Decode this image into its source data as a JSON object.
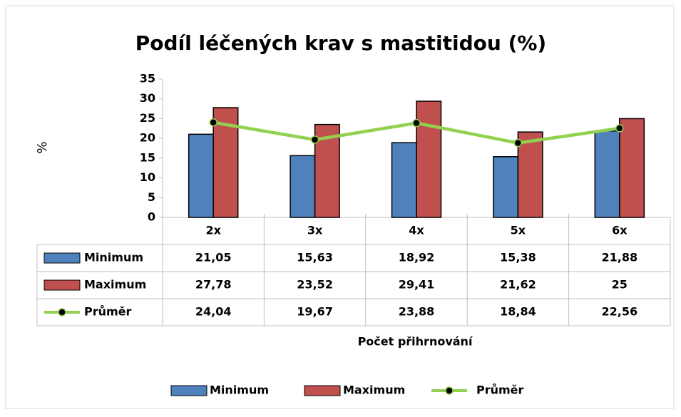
{
  "chart_data": {
    "type": "bar",
    "title": "Podíl léčených krav s mastitidou (%)",
    "y_label": "%",
    "x_label": "Počet přihrnování",
    "categories": [
      "2x",
      "3x",
      "4x",
      "5x",
      "6x"
    ],
    "series": [
      {
        "name": "Minimum",
        "type": "bar",
        "color": "#4f81bd",
        "values": [
          21.05,
          15.63,
          18.92,
          15.38,
          21.88
        ],
        "value_labels": [
          "21,05",
          "15,63",
          "18,92",
          "15,38",
          "21,88"
        ]
      },
      {
        "name": "Maximum",
        "type": "bar",
        "color": "#c0504d",
        "values": [
          27.78,
          23.52,
          29.41,
          21.62,
          25
        ],
        "value_labels": [
          "27,78",
          "23,52",
          "29,41",
          "21,62",
          "25"
        ]
      },
      {
        "name": "Průměr",
        "type": "line",
        "color": "#92d050",
        "marker_color": "#000000",
        "values": [
          24.04,
          19.67,
          23.88,
          18.84,
          22.56
        ],
        "value_labels": [
          "24,04",
          "19,67",
          "23,88",
          "18,84",
          "22,56"
        ]
      }
    ],
    "ylim": [
      0,
      35
    ],
    "yticks": [
      0,
      5,
      10,
      15,
      20,
      25,
      30,
      35
    ],
    "data_table": true,
    "legend": "bottom"
  }
}
